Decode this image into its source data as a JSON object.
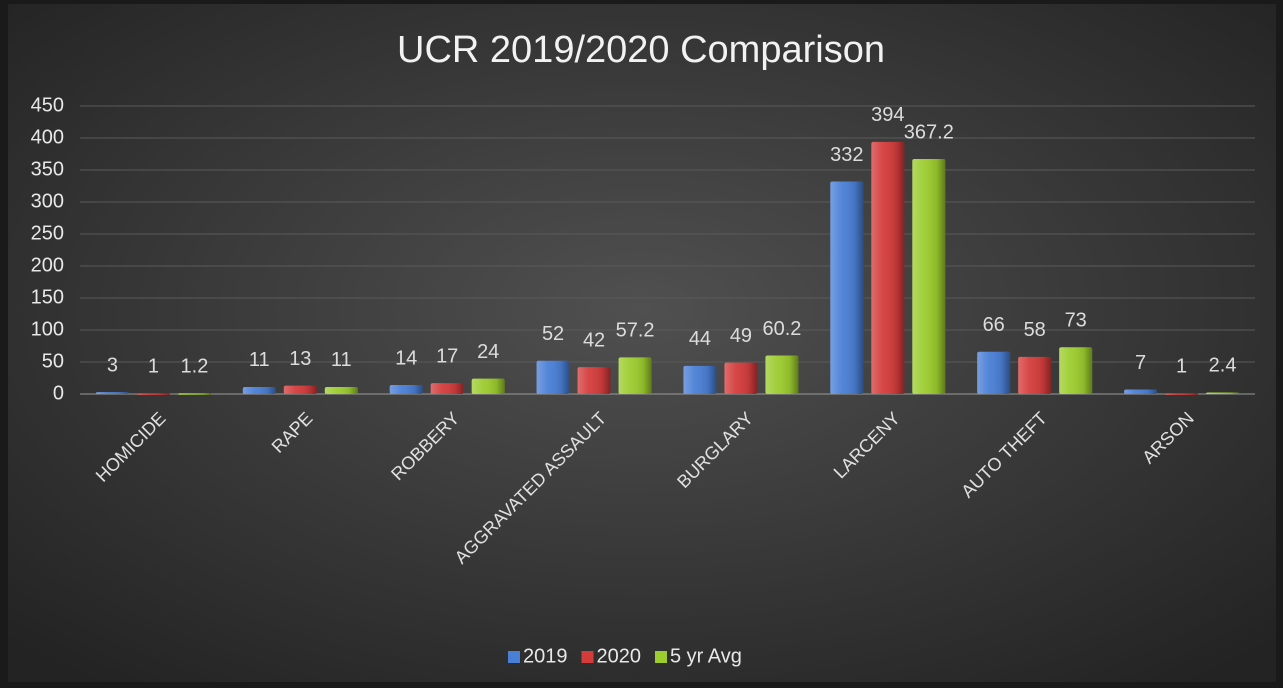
{
  "chart_data": {
    "type": "bar",
    "title": "UCR 2019/2020 Comparison",
    "categories": [
      "HOMICIDE",
      "RAPE",
      "ROBBERY",
      "AGGRAVATED ASSAULT",
      "BURGLARY",
      "LARCENY",
      "AUTO THEFT",
      "ARSON"
    ],
    "series": [
      {
        "name": "2019",
        "color": "#4a7fd6",
        "values": [
          3,
          11,
          14,
          52,
          44,
          332,
          66,
          7
        ]
      },
      {
        "name": "2020",
        "color": "#d43c3c",
        "values": [
          1,
          13,
          17,
          42,
          49,
          394,
          58,
          1
        ]
      },
      {
        "name": "5 yr Avg",
        "color": "#9ccc2e",
        "values": [
          1.2,
          11,
          24,
          57.2,
          60.2,
          367.2,
          73,
          2.4
        ]
      }
    ],
    "ylim": [
      0,
      450
    ],
    "yticks": [
      0,
      50,
      100,
      150,
      200,
      250,
      300,
      350,
      400,
      450
    ],
    "grid": true,
    "legend": "bottom"
  }
}
